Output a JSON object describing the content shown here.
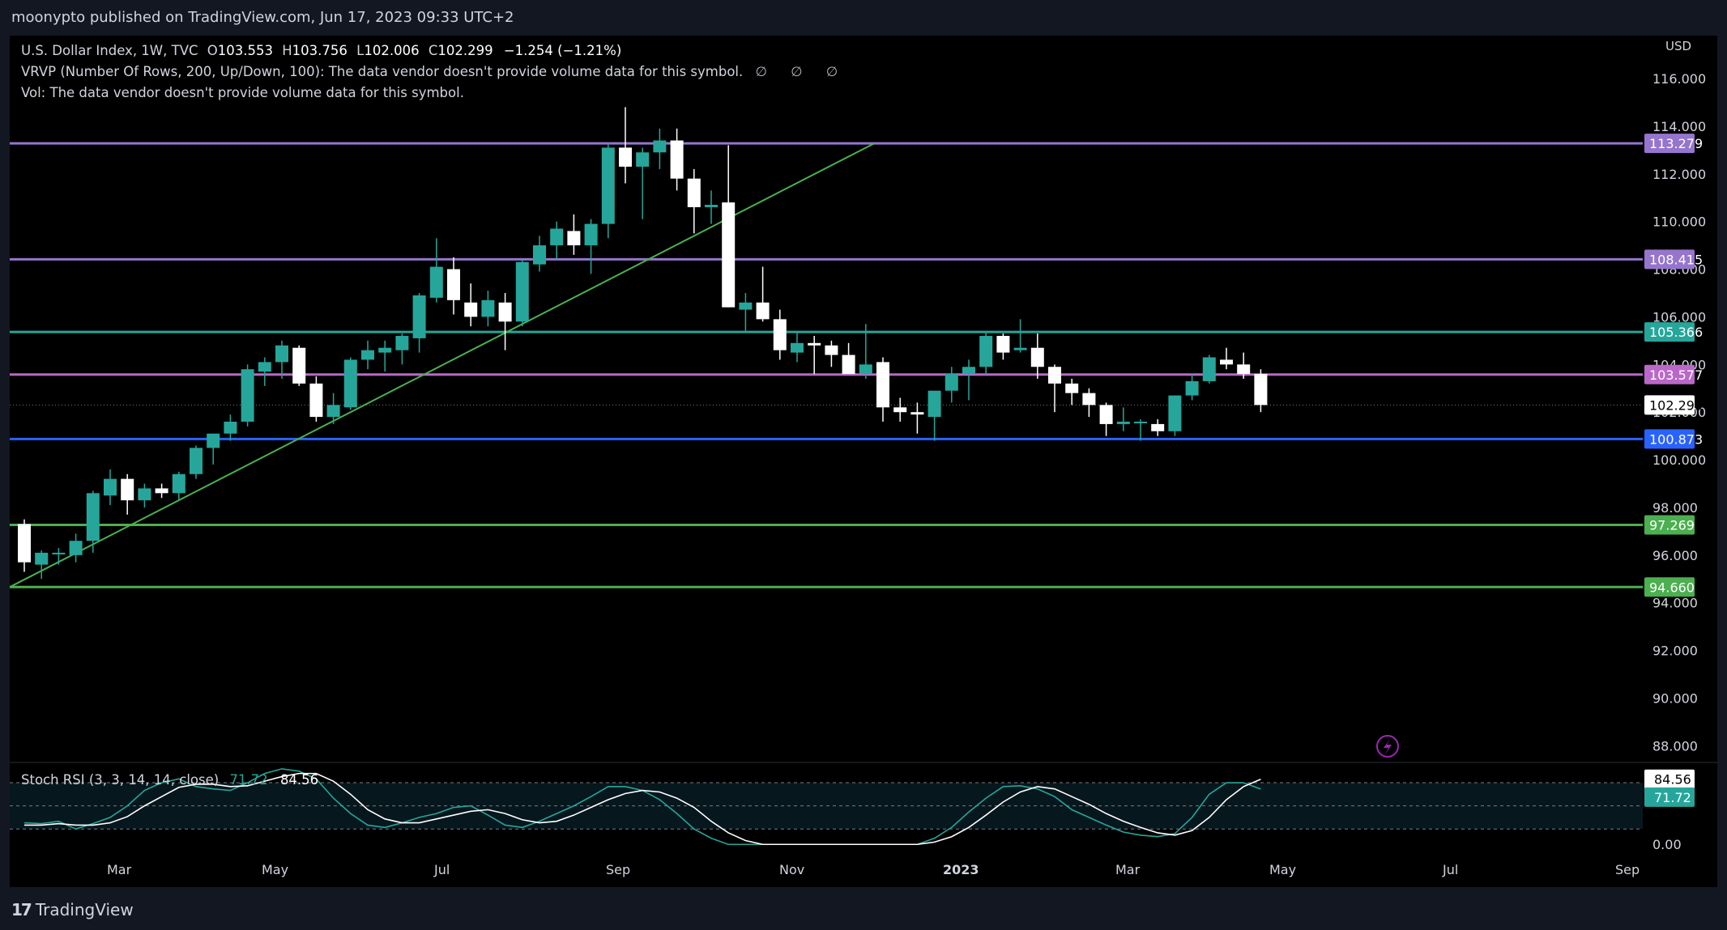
{
  "header": {
    "publisher_text": "moonypto published on TradingView.com, Jun 17, 2023 09:33 UTC+2"
  },
  "legend": {
    "symbol": "U.S. Dollar Index, 1W, TVC",
    "open_key": "O",
    "open": "103.553",
    "high_key": "H",
    "high": "103.756",
    "low_key": "L",
    "low": "102.006",
    "close_key": "C",
    "close": "102.299",
    "change": "−1.254 (−1.21%)",
    "vrvp": "VRVP (Number Of Rows, 200, Up/Down, 100): The data vendor doesn't provide volume data for this symbol.",
    "vrvp_icons": "∅ ∅ ∅",
    "vol": "Vol: The data vendor doesn't provide volume data for this symbol."
  },
  "stoch_legend": {
    "name": "Stoch RSI (3, 3, 14, 14, close)",
    "k_value": "71.72",
    "d_value": "84.56"
  },
  "footer": {
    "brand": "TradingView"
  },
  "colors": {
    "background": "#000000",
    "frame": "#131722",
    "up_candle": "#26a69a",
    "down_candle": "#ffffff",
    "purple_line": "#9575cd",
    "magenta_line": "#ba68c8",
    "teal_line": "#26a69a",
    "blue_line": "#2962ff",
    "green_line": "#4caf50",
    "stoch_k": "#26a69a",
    "stoch_d": "#ffffff"
  },
  "icons": {
    "alert": "lightning-icon"
  },
  "chart_data": [
    {
      "type": "candlestick",
      "title": "U.S. Dollar Index, 1W, TVC",
      "currency_label": "USD",
      "ylim": [
        87.3,
        117.8
      ],
      "y_ticks": [
        "88.000",
        "90.000",
        "92.000",
        "94.000",
        "96.000",
        "98.000",
        "100.000",
        "102.000",
        "104.000",
        "106.000",
        "108.000",
        "110.000",
        "112.000",
        "114.000",
        "116.000"
      ],
      "x_labels": [
        "Mar",
        "May",
        "Jul",
        "Sep",
        "Nov",
        "2023",
        "Mar",
        "May",
        "Jul",
        "Sep"
      ],
      "last_price": "102.299",
      "horizontal_levels": [
        {
          "value": 113.279,
          "label": "113.279",
          "color": "#9575cd"
        },
        {
          "value": 108.415,
          "label": "108.415",
          "color": "#9575cd"
        },
        {
          "value": 105.366,
          "label": "105.366",
          "color": "#26a69a"
        },
        {
          "value": 103.577,
          "label": "103.577",
          "color": "#ba68c8"
        },
        {
          "value": 100.873,
          "label": "100.873",
          "color": "#2962ff"
        },
        {
          "value": 97.269,
          "label": "97.269",
          "color": "#4caf50"
        },
        {
          "value": 94.66,
          "label": "94.660",
          "color": "#4caf50"
        }
      ],
      "trendline": {
        "from": [
          0,
          94.66
        ],
        "to": [
          49.5,
          113.279
        ],
        "color": "#4caf50"
      },
      "candles": [
        [
          97.3,
          97.5,
          95.3,
          95.7
        ],
        [
          95.6,
          96.2,
          95.0,
          96.1
        ],
        [
          96.1,
          96.3,
          95.6,
          96.1
        ],
        [
          96.0,
          96.9,
          95.7,
          96.6
        ],
        [
          96.6,
          98.7,
          96.1,
          98.6
        ],
        [
          98.5,
          99.6,
          98.1,
          99.2
        ],
        [
          99.2,
          99.4,
          97.7,
          98.3
        ],
        [
          98.3,
          99.0,
          98.0,
          98.8
        ],
        [
          98.8,
          99.0,
          98.4,
          98.6
        ],
        [
          98.6,
          99.5,
          98.3,
          99.4
        ],
        [
          99.4,
          100.6,
          99.2,
          100.5
        ],
        [
          100.5,
          101.0,
          99.8,
          101.1
        ],
        [
          101.1,
          101.9,
          100.8,
          101.6
        ],
        [
          101.6,
          104.0,
          101.4,
          103.8
        ],
        [
          103.7,
          104.3,
          103.1,
          104.1
        ],
        [
          104.1,
          105.0,
          103.4,
          104.8
        ],
        [
          104.7,
          104.8,
          103.1,
          103.2
        ],
        [
          103.2,
          103.5,
          101.6,
          101.8
        ],
        [
          101.8,
          102.8,
          101.5,
          102.3
        ],
        [
          102.2,
          104.3,
          102.1,
          104.2
        ],
        [
          104.2,
          105.0,
          103.8,
          104.6
        ],
        [
          104.5,
          105.0,
          103.7,
          104.7
        ],
        [
          104.6,
          105.3,
          104.0,
          105.2
        ],
        [
          105.1,
          107.0,
          104.5,
          106.9
        ],
        [
          106.8,
          109.3,
          106.6,
          108.1
        ],
        [
          108.0,
          108.5,
          106.1,
          106.7
        ],
        [
          106.6,
          107.4,
          105.6,
          106.0
        ],
        [
          106.0,
          107.1,
          105.6,
          106.7
        ],
        [
          106.6,
          107.0,
          104.6,
          105.8
        ],
        [
          105.8,
          108.4,
          105.6,
          108.3
        ],
        [
          108.2,
          109.4,
          107.9,
          109.0
        ],
        [
          109.0,
          110.0,
          108.4,
          109.7
        ],
        [
          109.6,
          110.3,
          108.6,
          109.0
        ],
        [
          109.0,
          110.1,
          107.8,
          109.9
        ],
        [
          109.9,
          113.3,
          109.3,
          113.1
        ],
        [
          113.1,
          114.8,
          111.6,
          112.3
        ],
        [
          112.3,
          113.1,
          110.1,
          112.9
        ],
        [
          112.9,
          113.9,
          112.2,
          113.4
        ],
        [
          113.4,
          113.9,
          111.3,
          111.8
        ],
        [
          111.8,
          112.2,
          109.5,
          110.6
        ],
        [
          110.6,
          111.3,
          109.9,
          110.7
        ],
        [
          110.8,
          113.2,
          106.4,
          106.4
        ],
        [
          106.3,
          107.0,
          105.4,
          106.6
        ],
        [
          106.6,
          108.1,
          105.8,
          105.9
        ],
        [
          105.9,
          106.3,
          104.2,
          104.6
        ],
        [
          104.5,
          105.4,
          104.1,
          104.9
        ],
        [
          104.9,
          105.2,
          103.6,
          104.8
        ],
        [
          104.8,
          105.0,
          103.9,
          104.4
        ],
        [
          104.4,
          104.9,
          103.7,
          103.6
        ],
        [
          103.6,
          105.7,
          103.4,
          104.0
        ],
        [
          104.1,
          104.3,
          101.6,
          102.2
        ],
        [
          102.2,
          102.6,
          101.6,
          102.0
        ],
        [
          102.0,
          102.4,
          101.1,
          101.9
        ],
        [
          101.8,
          102.8,
          100.8,
          102.9
        ],
        [
          102.9,
          103.9,
          102.4,
          103.6
        ],
        [
          103.6,
          104.2,
          102.5,
          103.9
        ],
        [
          103.9,
          105.4,
          103.6,
          105.2
        ],
        [
          105.2,
          105.3,
          104.2,
          104.5
        ],
        [
          104.6,
          105.9,
          104.5,
          104.7
        ],
        [
          104.7,
          105.3,
          103.4,
          103.9
        ],
        [
          103.9,
          104.0,
          102.0,
          103.2
        ],
        [
          103.2,
          103.4,
          102.3,
          102.8
        ],
        [
          102.8,
          103.0,
          101.8,
          102.3
        ],
        [
          102.3,
          102.4,
          101.0,
          101.5
        ],
        [
          101.5,
          102.2,
          101.2,
          101.6
        ],
        [
          101.6,
          101.7,
          100.8,
          101.6
        ],
        [
          101.5,
          101.7,
          101.0,
          101.2
        ],
        [
          101.2,
          102.7,
          101.0,
          102.7
        ],
        [
          102.7,
          103.6,
          102.5,
          103.3
        ],
        [
          103.3,
          104.4,
          103.2,
          104.3
        ],
        [
          104.2,
          104.7,
          103.8,
          104.0
        ],
        [
          104.0,
          104.5,
          103.4,
          103.6
        ],
        [
          103.6,
          103.8,
          102.0,
          102.3
        ]
      ]
    },
    {
      "type": "line",
      "title": "Stoch RSI (3, 3, 14, 14, close)",
      "ylim": [
        -5,
        100
      ],
      "y_ticks": [
        "0.00"
      ],
      "bands": [
        80,
        50,
        20
      ],
      "last_k": "71.72",
      "last_d": "84.56",
      "series": [
        {
          "name": "K",
          "color": "#26a69a",
          "values": [
            28,
            27,
            30,
            20,
            27,
            35,
            50,
            70,
            80,
            85,
            75,
            72,
            70,
            80,
            92,
            98,
            95,
            85,
            60,
            40,
            25,
            22,
            28,
            35,
            40,
            48,
            50,
            38,
            25,
            22,
            30,
            40,
            50,
            62,
            75,
            75,
            70,
            58,
            40,
            20,
            8,
            0,
            0,
            0,
            0,
            0,
            0,
            0,
            0,
            0,
            0,
            0,
            0,
            8,
            22,
            42,
            60,
            75,
            76,
            72,
            62,
            45,
            35,
            25,
            16,
            12,
            10,
            14,
            35,
            65,
            80,
            80,
            71.72
          ]
        },
        {
          "name": "D",
          "color": "#ffffff",
          "values": [
            25,
            25,
            27,
            25,
            25,
            28,
            36,
            50,
            62,
            74,
            78,
            78,
            75,
            76,
            82,
            88,
            92,
            92,
            82,
            65,
            45,
            33,
            28,
            28,
            33,
            38,
            43,
            45,
            40,
            32,
            28,
            30,
            38,
            48,
            58,
            66,
            70,
            68,
            60,
            48,
            30,
            15,
            5,
            0,
            0,
            0,
            0,
            0,
            0,
            0,
            0,
            0,
            0,
            3,
            10,
            22,
            38,
            55,
            68,
            75,
            72,
            62,
            52,
            40,
            30,
            22,
            15,
            12,
            18,
            35,
            58,
            75,
            84.56
          ]
        }
      ]
    }
  ]
}
